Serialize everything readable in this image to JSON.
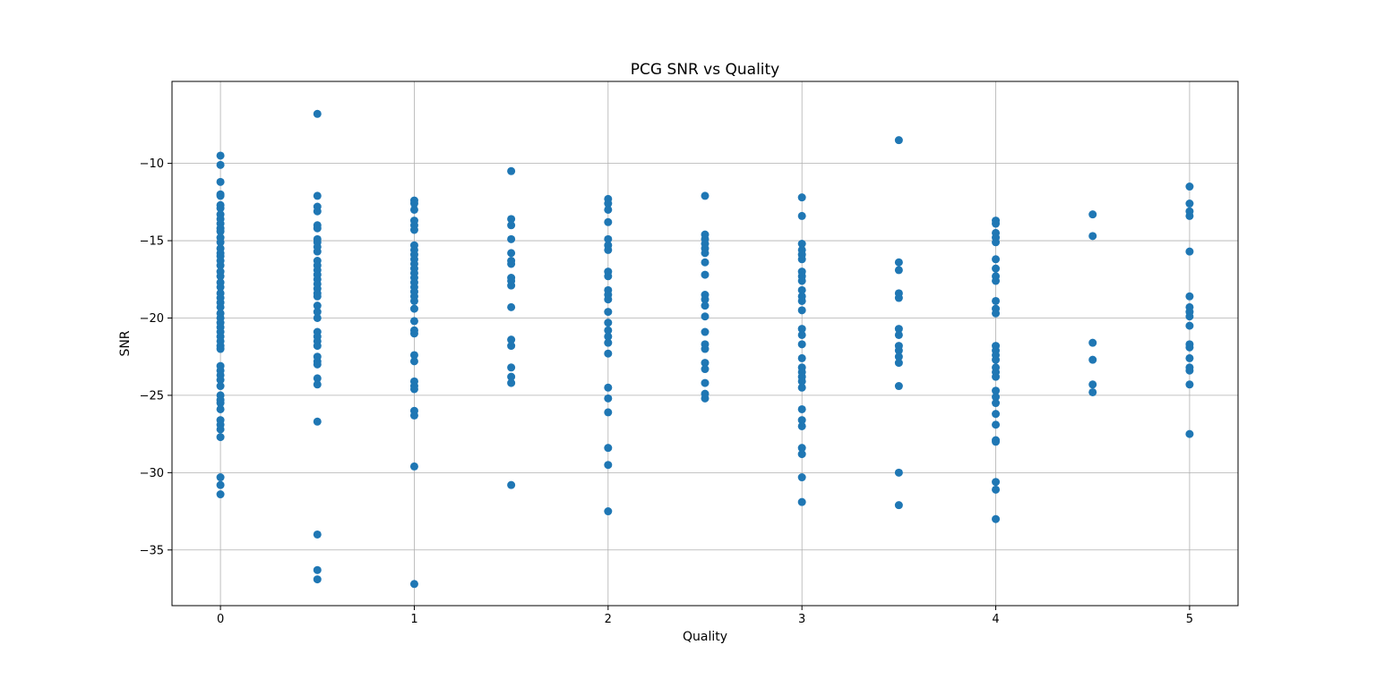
{
  "chart_data": {
    "type": "scatter",
    "title": "PCG SNR vs Quality",
    "xlabel": "Quality",
    "ylabel": "SNR",
    "xlim": [
      -0.25,
      5.25
    ],
    "ylim": [
      -38.6,
      -4.7
    ],
    "xticks": [
      0,
      1,
      2,
      3,
      4,
      5
    ],
    "xtick_labels": [
      "0",
      "1",
      "2",
      "3",
      "4",
      "5"
    ],
    "yticks": [
      -35,
      -30,
      -25,
      -20,
      -15,
      -10
    ],
    "ytick_labels": [
      "−35",
      "−30",
      "−25",
      "−20",
      "−15",
      "−10"
    ],
    "grid": true,
    "marker_color": "#1f77b4",
    "series": [
      {
        "points": [
          [
            0,
            -9.5
          ],
          [
            0,
            -10.1
          ],
          [
            0,
            -11.2
          ],
          [
            0,
            -12.0
          ],
          [
            0,
            -12.1
          ],
          [
            0,
            -12.7
          ],
          [
            0,
            -12.9
          ],
          [
            0,
            -13.3
          ],
          [
            0,
            -13.6
          ],
          [
            0,
            -13.9
          ],
          [
            0,
            -14.2
          ],
          [
            0,
            -14.4
          ],
          [
            0,
            -14.8
          ],
          [
            0,
            -15.1
          ],
          [
            0,
            -15.5
          ],
          [
            0,
            -15.8
          ],
          [
            0,
            -16.0
          ],
          [
            0,
            -16.3
          ],
          [
            0,
            -16.6
          ],
          [
            0,
            -17.0
          ],
          [
            0,
            -17.3
          ],
          [
            0,
            -17.7
          ],
          [
            0,
            -18.0
          ],
          [
            0,
            -18.4
          ],
          [
            0,
            -18.7
          ],
          [
            0,
            -19.0
          ],
          [
            0,
            -19.3
          ],
          [
            0,
            -19.7
          ],
          [
            0,
            -20.0
          ],
          [
            0,
            -20.3
          ],
          [
            0,
            -20.6
          ],
          [
            0,
            -20.9
          ],
          [
            0,
            -21.2
          ],
          [
            0,
            -21.5
          ],
          [
            0,
            -21.8
          ],
          [
            0,
            -22.0
          ],
          [
            0,
            -23.1
          ],
          [
            0,
            -23.4
          ],
          [
            0,
            -23.7
          ],
          [
            0,
            -24.0
          ],
          [
            0,
            -24.4
          ],
          [
            0,
            -25.0
          ],
          [
            0,
            -25.3
          ],
          [
            0,
            -25.5
          ],
          [
            0,
            -25.9
          ],
          [
            0,
            -26.6
          ],
          [
            0,
            -26.9
          ],
          [
            0,
            -27.2
          ],
          [
            0,
            -27.7
          ],
          [
            0,
            -30.3
          ],
          [
            0,
            -30.8
          ],
          [
            0,
            -31.4
          ],
          [
            0.5,
            -6.8
          ],
          [
            0.5,
            -12.1
          ],
          [
            0.5,
            -12.8
          ],
          [
            0.5,
            -13.1
          ],
          [
            0.5,
            -14.0
          ],
          [
            0.5,
            -14.2
          ],
          [
            0.5,
            -14.9
          ],
          [
            0.5,
            -15.1
          ],
          [
            0.5,
            -15.4
          ],
          [
            0.5,
            -15.7
          ],
          [
            0.5,
            -16.3
          ],
          [
            0.5,
            -16.6
          ],
          [
            0.5,
            -16.9
          ],
          [
            0.5,
            -17.2
          ],
          [
            0.5,
            -17.5
          ],
          [
            0.5,
            -17.8
          ],
          [
            0.5,
            -18.1
          ],
          [
            0.5,
            -18.4
          ],
          [
            0.5,
            -18.6
          ],
          [
            0.5,
            -19.2
          ],
          [
            0.5,
            -19.6
          ],
          [
            0.5,
            -20.0
          ],
          [
            0.5,
            -20.9
          ],
          [
            0.5,
            -21.2
          ],
          [
            0.5,
            -21.5
          ],
          [
            0.5,
            -21.8
          ],
          [
            0.5,
            -22.5
          ],
          [
            0.5,
            -22.8
          ],
          [
            0.5,
            -23.0
          ],
          [
            0.5,
            -23.9
          ],
          [
            0.5,
            -24.3
          ],
          [
            0.5,
            -26.7
          ],
          [
            0.5,
            -34.0
          ],
          [
            0.5,
            -36.3
          ],
          [
            0.5,
            -36.9
          ],
          [
            1,
            -12.4
          ],
          [
            1,
            -12.6
          ],
          [
            1,
            -13.0
          ],
          [
            1,
            -13.7
          ],
          [
            1,
            -14.0
          ],
          [
            1,
            -14.3
          ],
          [
            1,
            -15.3
          ],
          [
            1,
            -15.6
          ],
          [
            1,
            -15.9
          ],
          [
            1,
            -16.2
          ],
          [
            1,
            -16.5
          ],
          [
            1,
            -16.8
          ],
          [
            1,
            -17.1
          ],
          [
            1,
            -17.4
          ],
          [
            1,
            -17.7
          ],
          [
            1,
            -18.0
          ],
          [
            1,
            -18.3
          ],
          [
            1,
            -18.6
          ],
          [
            1,
            -18.9
          ],
          [
            1,
            -19.4
          ],
          [
            1,
            -20.2
          ],
          [
            1,
            -20.8
          ],
          [
            1,
            -21.0
          ],
          [
            1,
            -22.4
          ],
          [
            1,
            -22.8
          ],
          [
            1,
            -24.1
          ],
          [
            1,
            -24.4
          ],
          [
            1,
            -24.6
          ],
          [
            1,
            -26.0
          ],
          [
            1,
            -26.3
          ],
          [
            1,
            -29.6
          ],
          [
            1,
            -37.2
          ],
          [
            1.5,
            -10.5
          ],
          [
            1.5,
            -13.6
          ],
          [
            1.5,
            -14.0
          ],
          [
            1.5,
            -14.9
          ],
          [
            1.5,
            -15.8
          ],
          [
            1.5,
            -16.3
          ],
          [
            1.5,
            -16.5
          ],
          [
            1.5,
            -17.4
          ],
          [
            1.5,
            -17.6
          ],
          [
            1.5,
            -17.9
          ],
          [
            1.5,
            -19.3
          ],
          [
            1.5,
            -21.4
          ],
          [
            1.5,
            -21.8
          ],
          [
            1.5,
            -23.2
          ],
          [
            1.5,
            -23.8
          ],
          [
            1.5,
            -24.2
          ],
          [
            1.5,
            -30.8
          ],
          [
            2,
            -12.3
          ],
          [
            2,
            -12.6
          ],
          [
            2,
            -13.0
          ],
          [
            2,
            -13.8
          ],
          [
            2,
            -14.9
          ],
          [
            2,
            -15.3
          ],
          [
            2,
            -15.6
          ],
          [
            2,
            -17.0
          ],
          [
            2,
            -17.3
          ],
          [
            2,
            -18.2
          ],
          [
            2,
            -18.5
          ],
          [
            2,
            -18.8
          ],
          [
            2,
            -19.6
          ],
          [
            2,
            -20.3
          ],
          [
            2,
            -20.8
          ],
          [
            2,
            -21.2
          ],
          [
            2,
            -21.6
          ],
          [
            2,
            -22.3
          ],
          [
            2,
            -24.5
          ],
          [
            2,
            -25.2
          ],
          [
            2,
            -26.1
          ],
          [
            2,
            -28.4
          ],
          [
            2,
            -29.5
          ],
          [
            2,
            -32.5
          ],
          [
            2.5,
            -12.1
          ],
          [
            2.5,
            -14.6
          ],
          [
            2.5,
            -14.9
          ],
          [
            2.5,
            -15.2
          ],
          [
            2.5,
            -15.5
          ],
          [
            2.5,
            -15.8
          ],
          [
            2.5,
            -16.4
          ],
          [
            2.5,
            -17.2
          ],
          [
            2.5,
            -18.5
          ],
          [
            2.5,
            -18.8
          ],
          [
            2.5,
            -19.2
          ],
          [
            2.5,
            -19.9
          ],
          [
            2.5,
            -20.9
          ],
          [
            2.5,
            -21.7
          ],
          [
            2.5,
            -22.0
          ],
          [
            2.5,
            -22.9
          ],
          [
            2.5,
            -23.3
          ],
          [
            2.5,
            -24.2
          ],
          [
            2.5,
            -24.9
          ],
          [
            2.5,
            -25.2
          ],
          [
            3,
            -12.2
          ],
          [
            3,
            -13.4
          ],
          [
            3,
            -15.2
          ],
          [
            3,
            -15.6
          ],
          [
            3,
            -15.9
          ],
          [
            3,
            -16.2
          ],
          [
            3,
            -17.0
          ],
          [
            3,
            -17.3
          ],
          [
            3,
            -17.6
          ],
          [
            3,
            -18.2
          ],
          [
            3,
            -18.6
          ],
          [
            3,
            -18.9
          ],
          [
            3,
            -19.5
          ],
          [
            3,
            -20.7
          ],
          [
            3,
            -21.1
          ],
          [
            3,
            -21.7
          ],
          [
            3,
            -22.6
          ],
          [
            3,
            -23.2
          ],
          [
            3,
            -23.5
          ],
          [
            3,
            -23.8
          ],
          [
            3,
            -24.1
          ],
          [
            3,
            -24.5
          ],
          [
            3,
            -25.9
          ],
          [
            3,
            -26.6
          ],
          [
            3,
            -27.0
          ],
          [
            3,
            -28.4
          ],
          [
            3,
            -28.8
          ],
          [
            3,
            -30.3
          ],
          [
            3,
            -31.9
          ],
          [
            3.5,
            -8.5
          ],
          [
            3.5,
            -16.4
          ],
          [
            3.5,
            -16.9
          ],
          [
            3.5,
            -18.4
          ],
          [
            3.5,
            -18.7
          ],
          [
            3.5,
            -20.7
          ],
          [
            3.5,
            -21.1
          ],
          [
            3.5,
            -21.8
          ],
          [
            3.5,
            -22.1
          ],
          [
            3.5,
            -22.5
          ],
          [
            3.5,
            -22.9
          ],
          [
            3.5,
            -24.4
          ],
          [
            3.5,
            -30.0
          ],
          [
            3.5,
            -32.1
          ],
          [
            4,
            -13.7
          ],
          [
            4,
            -13.9
          ],
          [
            4,
            -14.5
          ],
          [
            4,
            -14.8
          ],
          [
            4,
            -15.1
          ],
          [
            4,
            -16.2
          ],
          [
            4,
            -16.8
          ],
          [
            4,
            -17.3
          ],
          [
            4,
            -17.6
          ],
          [
            4,
            -18.9
          ],
          [
            4,
            -19.4
          ],
          [
            4,
            -19.7
          ],
          [
            4,
            -21.8
          ],
          [
            4,
            -22.1
          ],
          [
            4,
            -22.4
          ],
          [
            4,
            -22.7
          ],
          [
            4,
            -23.2
          ],
          [
            4,
            -23.5
          ],
          [
            4,
            -23.8
          ],
          [
            4,
            -24.7
          ],
          [
            4,
            -25.1
          ],
          [
            4,
            -25.5
          ],
          [
            4,
            -26.2
          ],
          [
            4,
            -26.9
          ],
          [
            4,
            -27.9
          ],
          [
            4,
            -28.0
          ],
          [
            4,
            -30.6
          ],
          [
            4,
            -31.1
          ],
          [
            4,
            -33.0
          ],
          [
            4.5,
            -13.3
          ],
          [
            4.5,
            -14.7
          ],
          [
            4.5,
            -21.6
          ],
          [
            4.5,
            -22.7
          ],
          [
            4.5,
            -24.3
          ],
          [
            4.5,
            -24.8
          ],
          [
            5,
            -11.5
          ],
          [
            5,
            -12.6
          ],
          [
            5,
            -13.1
          ],
          [
            5,
            -13.4
          ],
          [
            5,
            -15.7
          ],
          [
            5,
            -18.6
          ],
          [
            5,
            -19.3
          ],
          [
            5,
            -19.6
          ],
          [
            5,
            -19.9
          ],
          [
            5,
            -20.5
          ],
          [
            5,
            -21.7
          ],
          [
            5,
            -21.9
          ],
          [
            5,
            -22.6
          ],
          [
            5,
            -23.2
          ],
          [
            5,
            -23.4
          ],
          [
            5,
            -24.3
          ],
          [
            5,
            -27.5
          ]
        ]
      }
    ]
  }
}
